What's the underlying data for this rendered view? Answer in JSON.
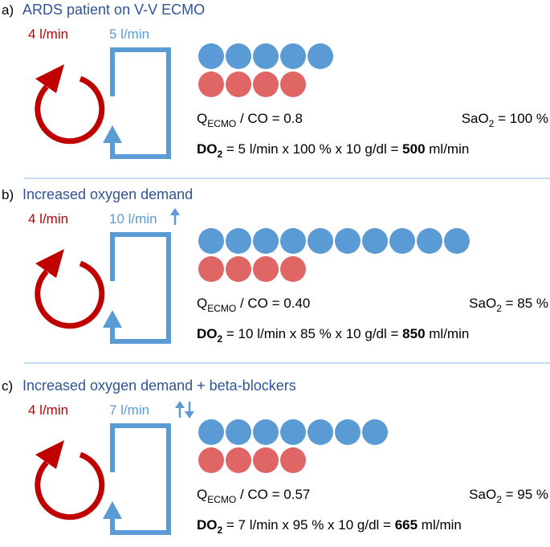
{
  "panels": [
    {
      "label": "a)",
      "title": "ARDS patient on V-V ECMO",
      "co_flow": "4 l/min",
      "ecmo_flow": "5 l/min",
      "blue_dots": 5,
      "red_dots": 4,
      "ratio": {
        "main": "Q",
        "sub": "ECMO",
        "rest": " / CO = 0.8"
      },
      "sao2": {
        "main": "SaO",
        "sub": "2",
        "rest": " = 100 %"
      },
      "do2": {
        "main": "DO",
        "sub": "2",
        "rest": " = 5 l/min x 100 % x 10 g/dl = ",
        "value": "500",
        "unit": " ml/min"
      }
    },
    {
      "label": "b)",
      "title": "Increased oxygen demand",
      "co_flow": "4 l/min",
      "ecmo_flow": "10 l/min",
      "blue_dots": 10,
      "red_dots": 4,
      "ratio": {
        "main": "Q",
        "sub": "ECMO",
        "rest": " / CO = 0.40"
      },
      "sao2": {
        "main": "SaO",
        "sub": "2",
        "rest": " = 85 %"
      },
      "do2": {
        "main": "DO",
        "sub": "2",
        "rest": " = 10 l/min x  85 % x 10 g/dl = ",
        "value": "850",
        "unit": " ml/min"
      }
    },
    {
      "label": "c)",
      "title": "Increased oxygen demand + beta-blockers",
      "co_flow": "4 l/min",
      "ecmo_flow": "7 l/min",
      "blue_dots": 7,
      "red_dots": 4,
      "ratio": {
        "main": "Q",
        "sub": "ECMO",
        "rest": " / CO = 0.57"
      },
      "sao2": {
        "main": "SaO",
        "sub": "2",
        "rest": " = 95 %"
      },
      "do2": {
        "main": "DO",
        "sub": "2",
        "rest": " = 7 l/min x 95 % x 10 g/dl = ",
        "value": "665",
        "unit": " ml/min"
      }
    }
  ]
}
